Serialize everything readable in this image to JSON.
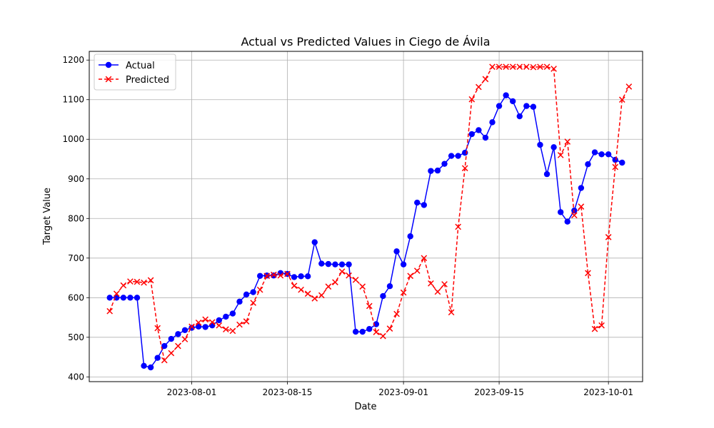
{
  "chart_data": {
    "type": "line",
    "title": "Actual vs Predicted Values in Ciego de Ávila",
    "xlabel": "Date",
    "ylabel": "Target Value",
    "x_start": "2023-07-20",
    "x_step_days": 1,
    "xlim": [
      "2023-07-17",
      "2023-10-06"
    ],
    "ylim": [
      388,
      1222
    ],
    "x_ticks": [
      "2023-08-01",
      "2023-08-15",
      "2023-09-01",
      "2023-09-15",
      "2023-10-01"
    ],
    "y_ticks": [
      400,
      500,
      600,
      700,
      800,
      900,
      1000,
      1100,
      1200
    ],
    "grid": true,
    "legend_position": "top-left",
    "series": [
      {
        "name": "Actual",
        "color": "#0000ff",
        "line_style": "solid",
        "marker": "circle",
        "values": [
          600,
          600,
          600,
          600,
          600,
          428,
          424,
          448,
          478,
          496,
          508,
          518,
          524,
          527,
          526,
          530,
          543,
          552,
          560,
          590,
          608,
          614,
          655,
          656,
          656,
          662,
          660,
          652,
          654,
          654,
          740,
          686,
          685,
          684,
          684,
          684,
          514,
          514,
          521,
          533,
          604,
          629,
          717,
          684,
          755,
          840,
          834,
          920,
          921,
          938,
          958,
          958,
          966,
          1013,
          1023,
          1004,
          1043,
          1084,
          1111,
          1096,
          1058,
          1084,
          1082,
          986,
          912,
          980,
          816,
          792,
          820,
          877,
          937,
          967,
          962,
          962,
          948,
          941
        ]
      },
      {
        "name": "Predicted",
        "color": "#ff0000",
        "line_style": "dashed",
        "marker": "x",
        "values": [
          566,
          610,
          631,
          641,
          640,
          638,
          644,
          523,
          442,
          460,
          478,
          495,
          527,
          537,
          545,
          538,
          530,
          520,
          516,
          532,
          540,
          587,
          620,
          655,
          658,
          656,
          660,
          630,
          620,
          610,
          598,
          606,
          628,
          639,
          666,
          656,
          645,
          628,
          579,
          513,
          503,
          522,
          559,
          613,
          655,
          668,
          700,
          636,
          615,
          634,
          563,
          779,
          927,
          1101,
          1132,
          1152,
          1183,
          1183,
          1183,
          1183,
          1183,
          1183,
          1182,
          1183,
          1183,
          1178,
          960,
          994,
          808,
          830,
          662,
          521,
          530,
          753,
          930,
          1100,
          1133
        ]
      }
    ]
  }
}
